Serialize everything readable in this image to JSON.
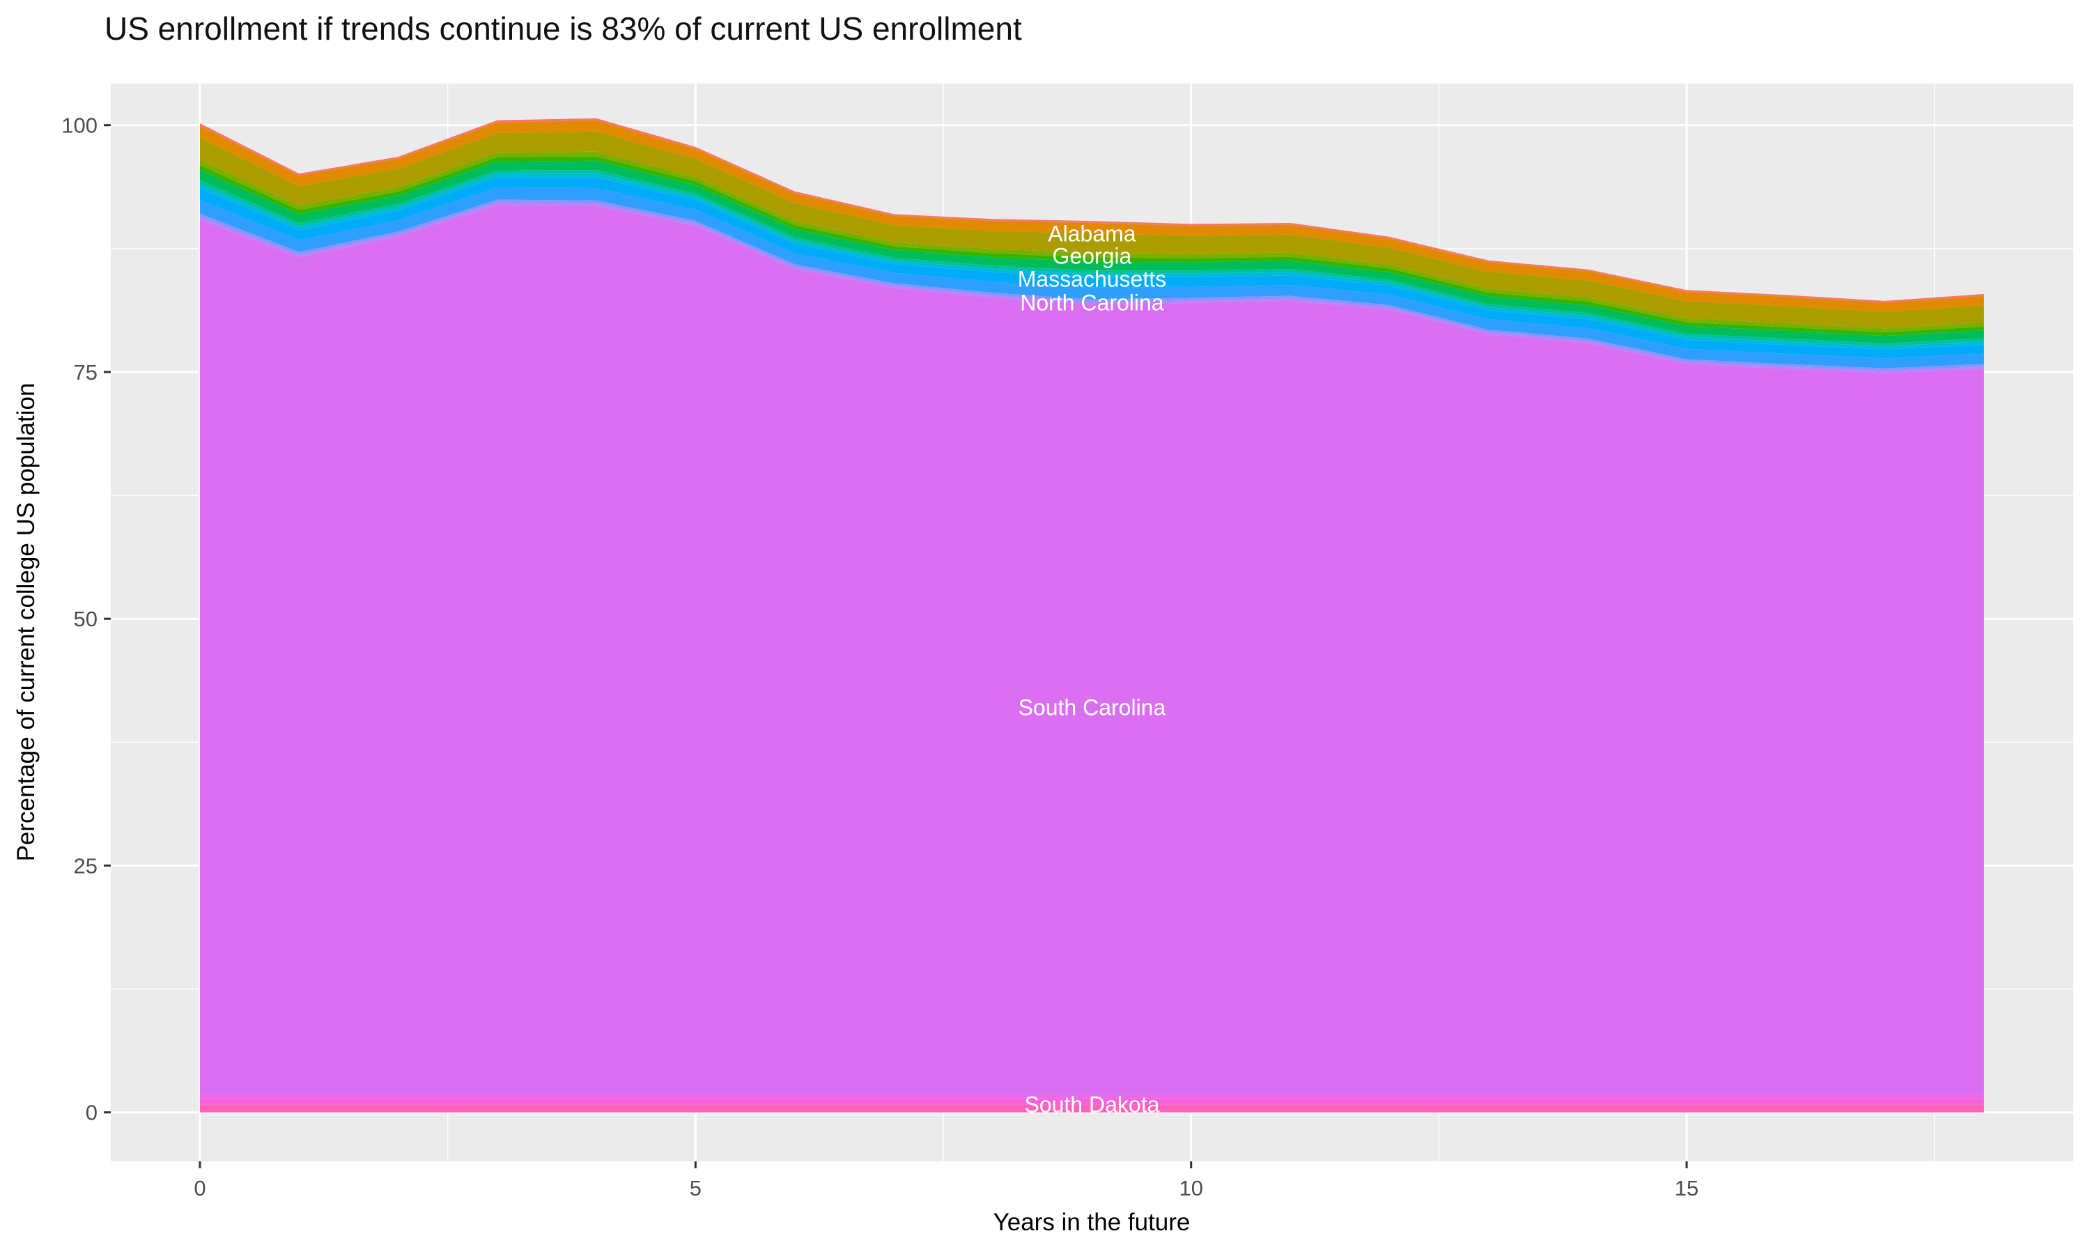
{
  "title": "US enrollment if trends continue is 83% of current US enrollment",
  "axes": {
    "x": {
      "title": "Years in the future",
      "ticks": [
        0,
        5,
        10,
        15
      ],
      "minor_ticks": [
        2.5,
        7.5,
        12.5,
        17.5
      ]
    },
    "y": {
      "title": "Percentage of current college US population",
      "ticks": [
        0,
        25,
        50,
        75,
        100
      ],
      "minor_ticks": [
        12.5,
        37.5,
        62.5,
        87.5
      ]
    }
  },
  "style": {
    "panel_bg": "#EBEBEB",
    "grid_major": "#FFFFFF",
    "grid_minor": "#FFFFFF",
    "tick_mark_color": "#333333",
    "tick_label_color": "#4D4D4D",
    "label_text_color": "#FFFFFF"
  },
  "chart_data": {
    "type": "area",
    "stacked": true,
    "title": "US enrollment if trends continue is 83% of current US enrollment",
    "xlabel": "Years in the future",
    "ylabel": "Percentage of current college US population",
    "xlim": [
      0,
      18
    ],
    "ylim": [
      0,
      100.7
    ],
    "grid": true,
    "legend": false,
    "x": [
      0,
      1,
      2,
      3,
      4,
      5,
      6,
      7,
      8,
      9,
      10,
      11,
      12,
      13,
      14,
      15,
      16,
      17,
      18
    ],
    "total_top": [
      100.2,
      95.1,
      96.8,
      100.5,
      100.7,
      97.8,
      93.3,
      91.0,
      90.5,
      90.3,
      90.0,
      90.1,
      88.7,
      86.3,
      85.4,
      83.3,
      82.8,
      82.2,
      82.9
    ],
    "south_carolina_top": [
      90.4,
      86.6,
      88.7,
      91.9,
      91.8,
      89.8,
      85.4,
      83.5,
      82.5,
      81.8,
      82.0,
      82.2,
      81.3,
      78.8,
      77.9,
      75.8,
      75.3,
      74.9,
      75.3
    ],
    "bottom_bands": [
      {
        "name": "hot-pink-band",
        "color": "#FF62BC",
        "from": 0,
        "to": 0.8
      },
      {
        "name": "pink-band",
        "color": "#F562DB",
        "from": 0.8,
        "to": 1.45
      },
      {
        "name": "orchid-pink-band",
        "color": "#EF67EB",
        "from": 1.45,
        "to": 1.75
      }
    ],
    "main_band": {
      "name": "south-carolina-band",
      "color": "#DA6FF1",
      "from": 1.75
    },
    "upper_bands": [
      {
        "name": "salmon-band",
        "color": "#F8766D",
        "frac_top": 0.0,
        "frac_bottom": 0.025
      },
      {
        "name": "orange-band",
        "color": "#E18A00",
        "frac_top": 0.025,
        "frac_bottom": 0.15
      },
      {
        "name": "olive-band",
        "color": "#AB9D00",
        "frac_top": 0.15,
        "frac_bottom": 0.38
      },
      {
        "name": "yellow-green-band",
        "color": "#7CAE00",
        "frac_top": 0.38,
        "frac_bottom": 0.435
      },
      {
        "name": "green-band",
        "color": "#33B600",
        "frac_top": 0.435,
        "frac_bottom": 0.485
      },
      {
        "name": "emerald-band",
        "color": "#00BC59",
        "frac_top": 0.485,
        "frac_bottom": 0.59
      },
      {
        "name": "teal-band",
        "color": "#00C1A2",
        "frac_top": 0.59,
        "frac_bottom": 0.63
      },
      {
        "name": "sky-band",
        "color": "#00BCD8",
        "frac_top": 0.63,
        "frac_bottom": 0.675
      },
      {
        "name": "azure-band",
        "color": "#00ACFA",
        "frac_top": 0.675,
        "frac_bottom": 0.795
      },
      {
        "name": "blue-band",
        "color": "#2E9EFF",
        "frac_top": 0.795,
        "frac_bottom": 0.935
      },
      {
        "name": "periwinkle-band",
        "color": "#8A93FF",
        "frac_top": 0.935,
        "frac_bottom": 0.97
      },
      {
        "name": "lavender-band",
        "color": "#BC81FF",
        "frac_top": 0.97,
        "frac_bottom": 1.0
      }
    ],
    "labels": [
      {
        "text": "Alabama",
        "x": 9,
        "value": 89.0
      },
      {
        "text": "Georgia",
        "x": 9,
        "value": 86.7
      },
      {
        "text": "Massachusetts",
        "x": 9,
        "value": 84.4
      },
      {
        "text": "North Carolina",
        "x": 9,
        "value": 82.0
      },
      {
        "text": "South Carolina",
        "x": 9,
        "value": 41.0
      },
      {
        "text": "South Dakota",
        "x": 9,
        "value": 0.75
      }
    ]
  }
}
